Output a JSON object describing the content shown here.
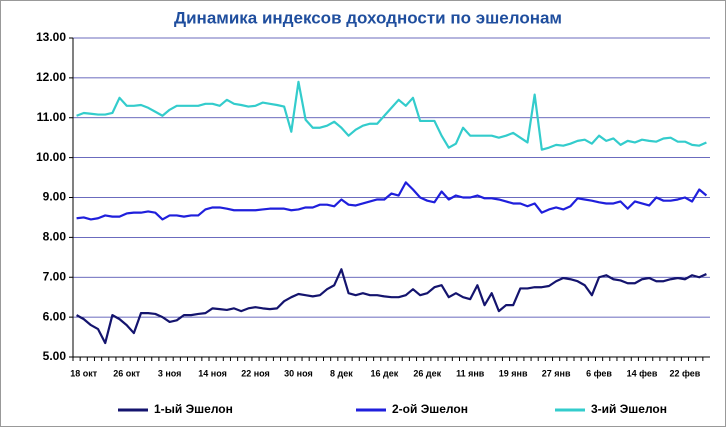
{
  "chart_data": {
    "type": "line",
    "title": "Динамика индексов доходности  по эшелонам",
    "categories": [
      null,
      "18 окт",
      null,
      null,
      null,
      null,
      null,
      "26 окт",
      null,
      null,
      null,
      null,
      null,
      "3 ноя",
      null,
      null,
      null,
      null,
      null,
      "14 ноя",
      null,
      null,
      null,
      null,
      null,
      "22 ноя",
      null,
      null,
      null,
      null,
      null,
      "30 ноя",
      null,
      null,
      null,
      null,
      null,
      "8 дек",
      null,
      null,
      null,
      null,
      null,
      "16 дек",
      null,
      null,
      null,
      null,
      null,
      "26 дек",
      null,
      null,
      null,
      null,
      null,
      "11 янв",
      null,
      null,
      null,
      null,
      null,
      "19 янв",
      null,
      null,
      null,
      null,
      null,
      "27 янв",
      null,
      null,
      null,
      null,
      null,
      "6 фев",
      null,
      null,
      null,
      null,
      null,
      "14 фев",
      null,
      null,
      null,
      null,
      null,
      "22 фев",
      null,
      null,
      null
    ],
    "series": [
      {
        "name": "1-ый Эшелон",
        "color": "#14146e",
        "values": [
          6.05,
          5.95,
          5.8,
          5.7,
          5.35,
          6.05,
          5.95,
          5.8,
          5.6,
          6.1,
          6.1,
          6.08,
          6.0,
          5.88,
          5.92,
          6.05,
          6.05,
          6.08,
          6.1,
          6.22,
          6.2,
          6.18,
          6.22,
          6.15,
          6.22,
          6.25,
          6.22,
          6.2,
          6.22,
          6.4,
          6.5,
          6.58,
          6.55,
          6.52,
          6.55,
          6.7,
          6.8,
          7.2,
          6.6,
          6.55,
          6.6,
          6.55,
          6.55,
          6.52,
          6.5,
          6.5,
          6.55,
          6.7,
          6.55,
          6.6,
          6.75,
          6.8,
          6.5,
          6.6,
          6.5,
          6.45,
          6.8,
          6.3,
          6.6,
          6.15,
          6.3,
          6.3,
          6.72,
          6.72,
          6.75,
          6.75,
          6.78,
          6.9,
          6.98,
          6.95,
          6.9,
          6.8,
          6.55,
          7.0,
          7.05,
          6.95,
          6.92,
          6.85,
          6.85,
          6.95,
          6.98,
          6.9,
          6.9,
          6.95,
          6.98,
          6.95,
          7.05,
          7.0,
          7.08
        ]
      },
      {
        "name": "2-ой Эшелон",
        "color": "#1f1fdc",
        "values": [
          8.48,
          8.5,
          8.45,
          8.48,
          8.55,
          8.52,
          8.52,
          8.6,
          8.62,
          8.62,
          8.65,
          8.62,
          8.45,
          8.55,
          8.55,
          8.52,
          8.55,
          8.55,
          8.7,
          8.75,
          8.75,
          8.72,
          8.68,
          8.68,
          8.68,
          8.68,
          8.7,
          8.72,
          8.72,
          8.72,
          8.68,
          8.7,
          8.75,
          8.75,
          8.82,
          8.82,
          8.78,
          8.95,
          8.82,
          8.8,
          8.85,
          8.9,
          8.95,
          8.95,
          9.1,
          9.05,
          9.38,
          9.2,
          9.0,
          8.92,
          8.88,
          9.15,
          8.95,
          9.05,
          9.0,
          9.0,
          9.05,
          8.98,
          8.98,
          8.95,
          8.9,
          8.85,
          8.85,
          8.78,
          8.85,
          8.62,
          8.7,
          8.75,
          8.7,
          8.78,
          8.98,
          8.95,
          8.92,
          8.88,
          8.85,
          8.85,
          8.9,
          8.72,
          8.9,
          8.85,
          8.8,
          9.0,
          8.92,
          8.92,
          8.95,
          9.0,
          8.9,
          9.2,
          9.05
        ]
      },
      {
        "name": "3-ий Эшелон",
        "color": "#33cccc",
        "values": [
          11.05,
          11.12,
          11.1,
          11.08,
          11.08,
          11.12,
          11.5,
          11.3,
          11.3,
          11.32,
          11.25,
          11.15,
          11.05,
          11.2,
          11.3,
          11.3,
          11.3,
          11.3,
          11.35,
          11.35,
          11.3,
          11.45,
          11.35,
          11.32,
          11.28,
          11.3,
          11.38,
          11.35,
          11.32,
          11.28,
          10.65,
          11.9,
          10.95,
          10.75,
          10.75,
          10.8,
          10.9,
          10.75,
          10.55,
          10.7,
          10.8,
          10.85,
          10.85,
          11.05,
          11.25,
          11.45,
          11.3,
          11.5,
          10.92,
          10.92,
          10.92,
          10.55,
          10.25,
          10.35,
          10.75,
          10.55,
          10.55,
          10.55,
          10.55,
          10.5,
          10.55,
          10.62,
          10.5,
          10.38,
          11.58,
          10.2,
          10.25,
          10.32,
          10.3,
          10.35,
          10.42,
          10.45,
          10.35,
          10.55,
          10.42,
          10.48,
          10.32,
          10.42,
          10.38,
          10.45,
          10.42,
          10.4,
          10.48,
          10.5,
          10.4,
          10.4,
          10.32,
          10.3,
          10.38
        ]
      }
    ],
    "ylim": [
      5,
      13
    ],
    "yticks": [
      {
        "value": 5,
        "label": "5.00"
      },
      {
        "value": 6,
        "label": "6.00"
      },
      {
        "value": 7,
        "label": "7.00"
      },
      {
        "value": 8,
        "label": "8.00"
      },
      {
        "value": 9,
        "label": "9.00"
      },
      {
        "value": 10,
        "label": "10.00"
      },
      {
        "value": 11,
        "label": "11.00"
      },
      {
        "value": 12,
        "label": "12.00"
      },
      {
        "value": 13,
        "label": "13.00"
      }
    ],
    "grid": true,
    "legend": "bottom"
  }
}
